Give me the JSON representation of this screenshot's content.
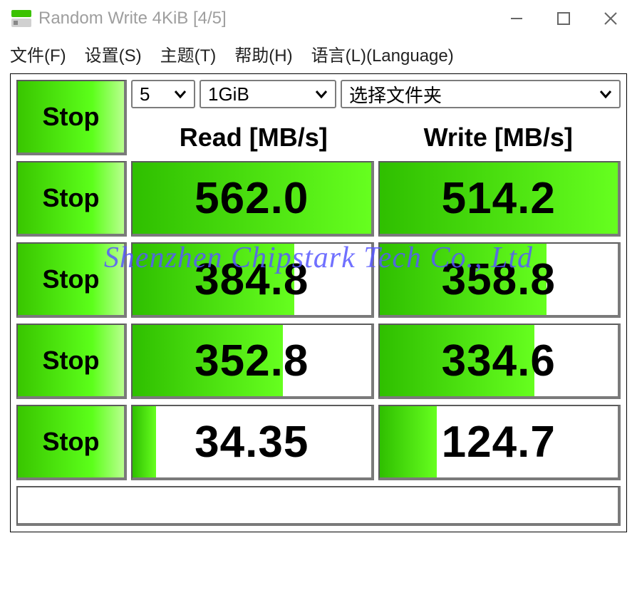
{
  "window": {
    "title": "Random Write 4KiB [4/5]"
  },
  "menu": {
    "file": "文件(F)",
    "settings": "设置(S)",
    "theme": "主题(T)",
    "help": "帮助(H)",
    "language": "语言(L)(Language)"
  },
  "controls": {
    "main_stop": "Stop",
    "count": "5",
    "size": "1GiB",
    "folder": "选择文件夹"
  },
  "headers": {
    "read": "Read [MB/s]",
    "write": "Write [MB/s]"
  },
  "rows": [
    {
      "btn": "Stop",
      "read": "562.0",
      "read_pct": 100,
      "write": "514.2",
      "write_pct": 100
    },
    {
      "btn": "Stop",
      "read": "384.8",
      "read_pct": 68,
      "write": "358.8",
      "write_pct": 70
    },
    {
      "btn": "Stop",
      "read": "352.8",
      "read_pct": 63,
      "write": "334.6",
      "write_pct": 65
    },
    {
      "btn": "Stop",
      "read": "34.35",
      "read_pct": 10,
      "write": "124.7",
      "write_pct": 24
    }
  ],
  "watermark": "Shenzhen Chipstark Tech Co., Ltd",
  "colors": {
    "green_start": "#2fbf00",
    "green_end": "#66ff1f",
    "btn_start": "#39c600",
    "btn_end": "#b9ff8f",
    "border": "#5b5b5b",
    "title_gray": "#9e9e9e",
    "watermark": "#5858ff"
  }
}
